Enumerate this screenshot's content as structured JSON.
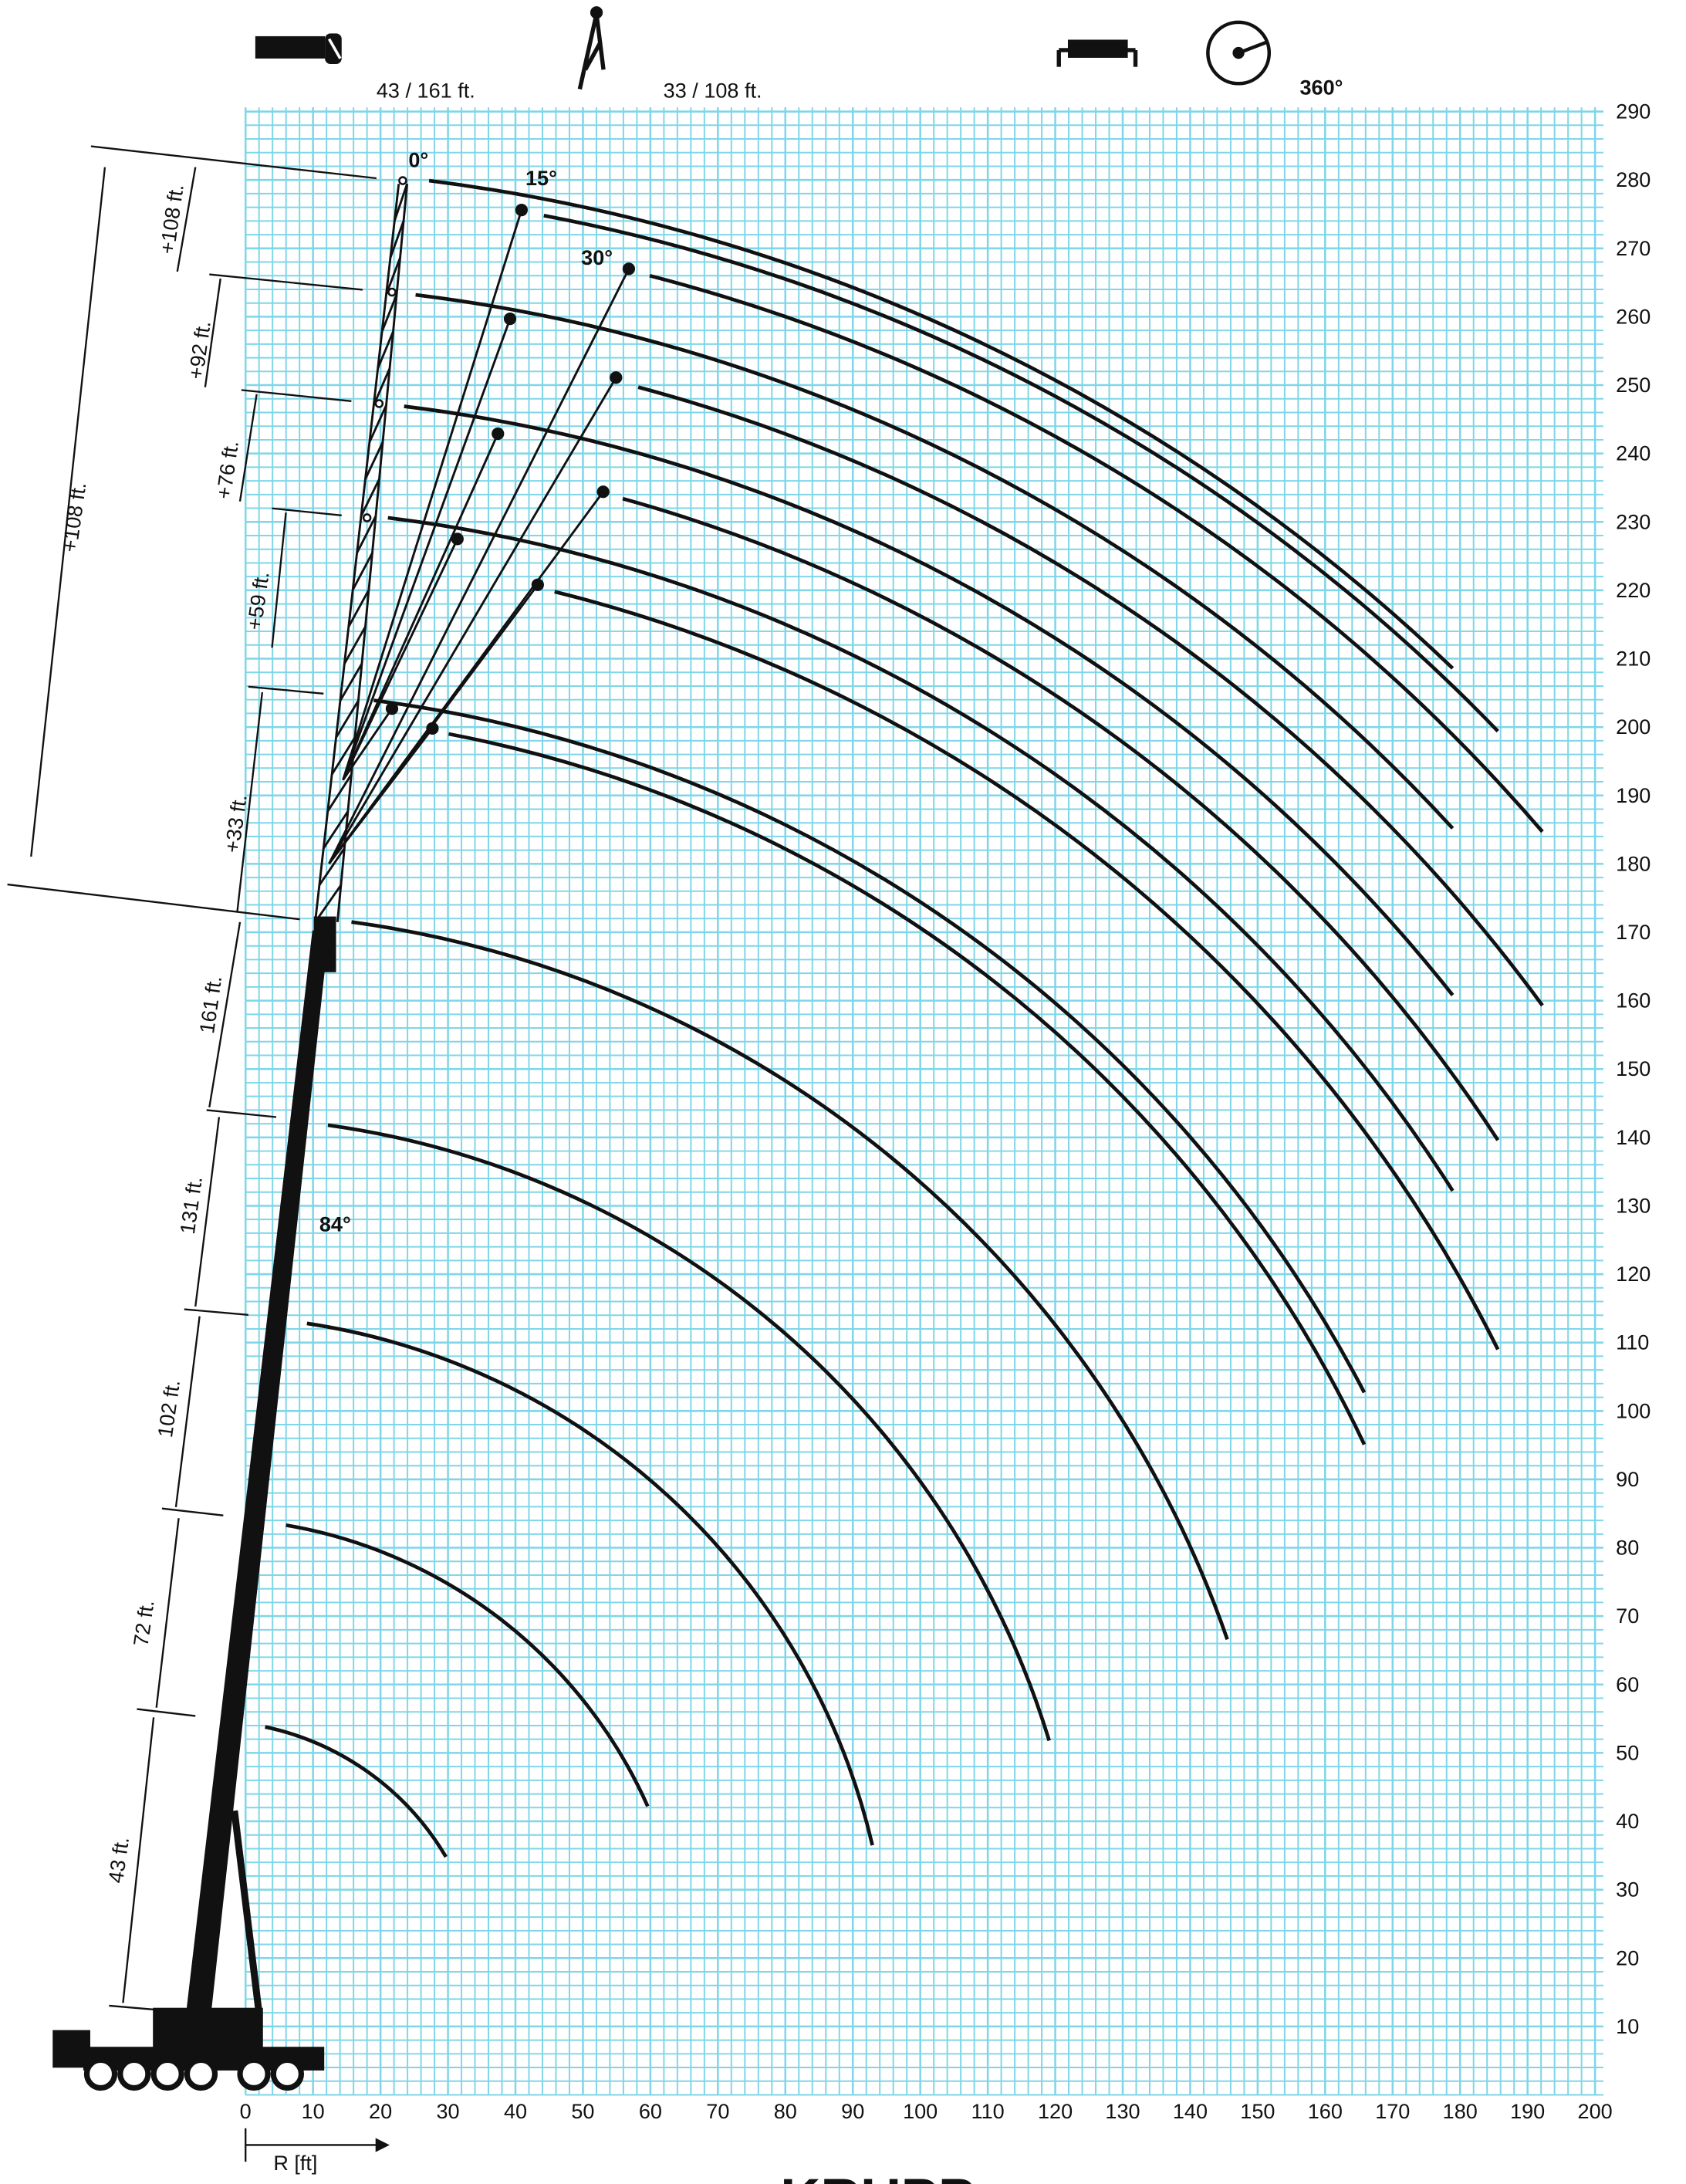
{
  "chart_data": {
    "type": "range",
    "boom_label": "43 / 161 ft.",
    "jib_label": "33 / 108 ft.",
    "rotation_label": "360°",
    "x_label": "R [ft]",
    "brand": "KRUPP",
    "xlim": [
      0,
      200
    ],
    "ylim": [
      0,
      290
    ],
    "xticks": [
      0,
      10,
      20,
      30,
      40,
      50,
      60,
      70,
      80,
      90,
      100,
      110,
      120,
      130,
      140,
      150,
      160,
      170,
      180,
      190,
      200
    ],
    "yticks": [
      10,
      20,
      30,
      40,
      50,
      60,
      70,
      80,
      90,
      100,
      110,
      120,
      130,
      140,
      150,
      160,
      170,
      180,
      190,
      200,
      210,
      220,
      230,
      240,
      250,
      260,
      270,
      280,
      290
    ],
    "grid": true,
    "grid_step": 2,
    "grid_color": "#7fd6e8",
    "curve_color": "#111111",
    "length_labels": [
      "+108 ft.",
      "+92 ft.",
      "+76 ft.",
      "+59 ft.",
      "+33 ft.",
      "+108 ft.",
      "161 ft.",
      "131 ft.",
      "102 ft.",
      "72 ft.",
      "43 ft."
    ],
    "angle_labels": [
      "0°",
      "15°",
      "30°",
      "84°"
    ],
    "curves": [
      {
        "x": [
          2.9,
          18.3,
          29.7
        ],
        "y": [
          53.8,
          47.1,
          34.8
        ]
      },
      {
        "x": [
          6.0,
          38.0,
          59.6
        ],
        "y": [
          83.3,
          69.4,
          42.2
        ]
      },
      {
        "x": [
          9.1,
          62.7,
          92.9
        ],
        "y": [
          112.8,
          87.5,
          36.5
        ]
      },
      {
        "x": [
          12.2,
          78.7,
          119.1
        ],
        "y": [
          141.8,
          112.4,
          51.8
        ]
      },
      {
        "x": [
          15.7,
          95.4,
          145.5
        ],
        "y": [
          171.5,
          137.3,
          66.6
        ]
      },
      {
        "x": [
          27.2,
          108.8,
          178.9
        ],
        "y": [
          279.9,
          256.3,
          208.6
        ]
      },
      {
        "x": [
          44.2,
          120.7,
          185.6
        ],
        "y": [
          274.8,
          248.0,
          199.4
        ]
      },
      {
        "x": [
          59.9,
          132.3,
          192.2
        ],
        "y": [
          266.0,
          235.4,
          184.7
        ]
      },
      {
        "x": [
          25.2,
          108.9,
          178.9
        ],
        "y": [
          263.2,
          237.8,
          185.2
        ]
      },
      {
        "x": [
          58.2,
          132.9,
          192.2
        ],
        "y": [
          249.7,
          215.9,
          159.3
        ]
      },
      {
        "x": [
          23.5,
          109.6,
          178.9
        ],
        "y": [
          246.9,
          219.1,
          160.8
        ]
      },
      {
        "x": [
          55.9,
          129.3,
          185.6
        ],
        "y": [
          233.4,
          198.3,
          139.6
        ]
      },
      {
        "x": [
          21.1,
          111.0,
          178.9
        ],
        "y": [
          230.6,
          199.0,
          132.2
        ]
      },
      {
        "x": [
          45.8,
          127.8,
          185.6
        ],
        "y": [
          219.8,
          179.8,
          109.0
        ]
      },
      {
        "x": [
          19.0,
          104.7,
          165.8
        ],
        "y": [
          203.9,
          171.3,
          102.7
        ]
      },
      {
        "x": [
          30.1,
          110.3,
          165.8
        ],
        "y": [
          199.0,
          163.3,
          95.1
        ]
      }
    ],
    "dots": {
      "x": [
        40.9,
        39.2,
        37.4,
        31.4,
        21.7,
        56.8,
        54.9,
        53.0,
        43.3,
        27.7
      ],
      "y": [
        275.6,
        259.7,
        242.9,
        227.5,
        202.7,
        267.0,
        251.1,
        234.4,
        220.8,
        199.8
      ]
    },
    "tips": {
      "x": [
        23.3,
        21.7,
        19.8,
        18.0
      ],
      "y": [
        279.9,
        263.6,
        247.3,
        230.6
      ]
    }
  }
}
